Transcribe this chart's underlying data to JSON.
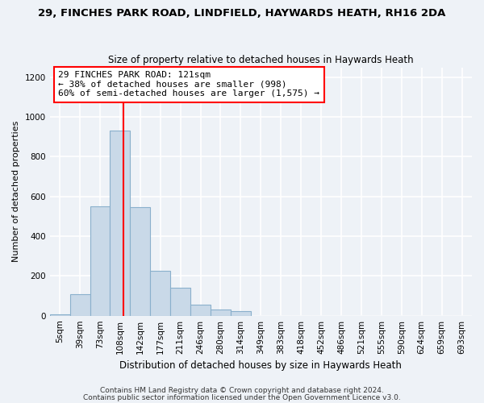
{
  "title1": "29, FINCHES PARK ROAD, LINDFIELD, HAYWARDS HEATH, RH16 2DA",
  "title2": "Size of property relative to detached houses in Haywards Heath",
  "xlabel": "Distribution of detached houses by size in Haywards Heath",
  "ylabel": "Number of detached properties",
  "bin_labels": [
    "5sqm",
    "39sqm",
    "73sqm",
    "108sqm",
    "142sqm",
    "177sqm",
    "211sqm",
    "246sqm",
    "280sqm",
    "314sqm",
    "349sqm",
    "383sqm",
    "418sqm",
    "452sqm",
    "486sqm",
    "521sqm",
    "555sqm",
    "590sqm",
    "624sqm",
    "659sqm",
    "693sqm"
  ],
  "bar_heights": [
    5,
    110,
    550,
    930,
    545,
    225,
    140,
    55,
    30,
    25,
    0,
    0,
    0,
    0,
    0,
    0,
    0,
    0,
    0,
    0,
    0
  ],
  "bar_color": "#c9d9e8",
  "bar_edge_color": "#8ab0cc",
  "annotation_text": "29 FINCHES PARK ROAD: 121sqm\n← 38% of detached houses are smaller (998)\n60% of semi-detached houses are larger (1,575) →",
  "annotation_box_color": "white",
  "annotation_box_edge_color": "red",
  "vline_color": "red",
  "vline_x": 3.15,
  "ylim": [
    0,
    1250
  ],
  "yticks": [
    0,
    200,
    400,
    600,
    800,
    1000,
    1200
  ],
  "footer1": "Contains HM Land Registry data © Crown copyright and database right 2024.",
  "footer2": "Contains public sector information licensed under the Open Government Licence v3.0.",
  "bg_color": "#eef2f7",
  "plot_bg_color": "#eef2f7",
  "grid_color": "white",
  "title1_fontsize": 9.5,
  "title2_fontsize": 8.5,
  "xlabel_fontsize": 8.5,
  "ylabel_fontsize": 8,
  "tick_fontsize": 7.5,
  "annot_fontsize": 8,
  "footer_fontsize": 6.5
}
